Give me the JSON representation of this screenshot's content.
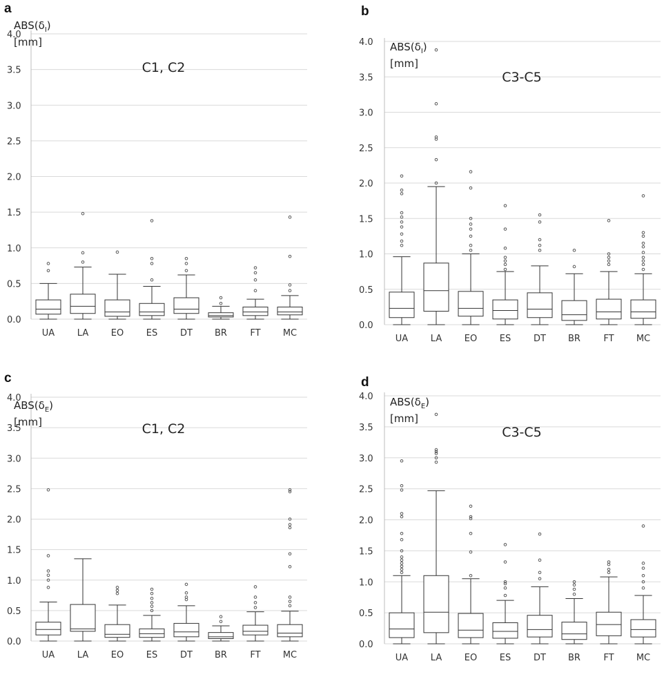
{
  "chart_data": [
    {
      "panel": "a",
      "type": "box",
      "title": "C1, C2",
      "ylabel": "ABS(δI)",
      "yunit": "[mm]",
      "ylim": [
        0,
        4.0
      ],
      "yticks": [
        "0.0",
        "0.5",
        "1.0",
        "1.5",
        "2.0",
        "2.5",
        "3.0",
        "3.5",
        "4.0"
      ],
      "grid": true,
      "categories": [
        "UA",
        "LA",
        "EO",
        "ES",
        "DT",
        "BR",
        "FT",
        "MC"
      ],
      "boxes": [
        {
          "min": 0,
          "q1": 0.07,
          "median": 0.14,
          "q3": 0.27,
          "max": 0.5,
          "outliers": [
            0.68,
            0.78
          ]
        },
        {
          "min": 0,
          "q1": 0.08,
          "median": 0.18,
          "q3": 0.35,
          "max": 0.73,
          "outliers": [
            0.8,
            0.93,
            1.48
          ]
        },
        {
          "min": 0,
          "q1": 0.04,
          "median": 0.1,
          "q3": 0.27,
          "max": 0.63,
          "outliers": [
            0.94
          ]
        },
        {
          "min": 0,
          "q1": 0.05,
          "median": 0.1,
          "q3": 0.22,
          "max": 0.46,
          "outliers": [
            0.55,
            0.78,
            0.85,
            1.38
          ]
        },
        {
          "min": 0,
          "q1": 0.08,
          "median": 0.14,
          "q3": 0.3,
          "max": 0.62,
          "outliers": [
            0.68,
            0.78,
            0.85
          ]
        },
        {
          "min": 0,
          "q1": 0.03,
          "median": 0.05,
          "q3": 0.09,
          "max": 0.18,
          "outliers": [
            0.22,
            0.3
          ]
        },
        {
          "min": 0,
          "q1": 0.05,
          "median": 0.1,
          "q3": 0.17,
          "max": 0.28,
          "outliers": [
            0.4,
            0.55,
            0.65,
            0.72
          ]
        },
        {
          "min": 0,
          "q1": 0.06,
          "median": 0.1,
          "q3": 0.17,
          "max": 0.33,
          "outliers": [
            0.4,
            0.48,
            0.88,
            1.43
          ]
        }
      ]
    },
    {
      "panel": "b",
      "type": "box",
      "title": "C3-C5",
      "ylabel": "ABS(δI)",
      "yunit": "[mm]",
      "ylim": [
        0,
        4.0
      ],
      "yticks": [
        "0.0",
        "0.5",
        "1.0",
        "1.5",
        "2.0",
        "2.5",
        "3.0",
        "3.5",
        "4.0"
      ],
      "grid": true,
      "categories": [
        "UA",
        "LA",
        "EO",
        "ES",
        "DT",
        "BR",
        "FT",
        "MC"
      ],
      "boxes": [
        {
          "min": 0,
          "q1": 0.1,
          "median": 0.23,
          "q3": 0.46,
          "max": 0.96,
          "outliers": [
            1.12,
            1.18,
            1.28,
            1.38,
            1.45,
            1.52,
            1.58,
            1.85,
            1.9,
            2.1
          ]
        },
        {
          "min": 0,
          "q1": 0.19,
          "median": 0.48,
          "q3": 0.87,
          "max": 1.95,
          "outliers": [
            2.0,
            2.33,
            2.62,
            2.65,
            3.12,
            3.88
          ]
        },
        {
          "min": 0,
          "q1": 0.12,
          "median": 0.23,
          "q3": 0.47,
          "max": 1.0,
          "outliers": [
            1.05,
            1.12,
            1.25,
            1.35,
            1.42,
            1.5,
            1.93,
            2.16
          ]
        },
        {
          "min": 0,
          "q1": 0.08,
          "median": 0.2,
          "q3": 0.35,
          "max": 0.75,
          "outliers": [
            0.78,
            0.85,
            0.9,
            0.95,
            1.08,
            1.35,
            1.68
          ]
        },
        {
          "min": 0,
          "q1": 0.1,
          "median": 0.22,
          "q3": 0.45,
          "max": 0.83,
          "outliers": [
            1.05,
            1.12,
            1.2,
            1.45,
            1.55
          ]
        },
        {
          "min": 0,
          "q1": 0.06,
          "median": 0.14,
          "q3": 0.34,
          "max": 0.72,
          "outliers": [
            0.82,
            1.05
          ]
        },
        {
          "min": 0,
          "q1": 0.08,
          "median": 0.18,
          "q3": 0.36,
          "max": 0.75,
          "outliers": [
            0.85,
            0.9,
            0.95,
            1.0,
            1.47
          ]
        },
        {
          "min": 0,
          "q1": 0.09,
          "median": 0.18,
          "q3": 0.35,
          "max": 0.72,
          "outliers": [
            0.78,
            0.85,
            0.9,
            0.95,
            1.02,
            1.1,
            1.15,
            1.25,
            1.3,
            1.82
          ]
        }
      ]
    },
    {
      "panel": "c",
      "type": "box",
      "title": "C1, C2",
      "ylabel": "ABS(δE)",
      "yunit": "[mm]",
      "ylim": [
        0,
        4.0
      ],
      "yticks": [
        "0.0",
        "0.5",
        "1.0",
        "1.5",
        "2.0",
        "2.5",
        "3.0",
        "3.5",
        "4.0"
      ],
      "grid": true,
      "categories": [
        "UA",
        "LA",
        "EO",
        "ES",
        "DT",
        "BR",
        "FT",
        "MC"
      ],
      "boxes": [
        {
          "min": 0,
          "q1": 0.1,
          "median": 0.19,
          "q3": 0.31,
          "max": 0.64,
          "outliers": [
            0.88,
            1.0,
            1.08,
            1.15,
            1.4,
            2.48
          ]
        },
        {
          "min": 0,
          "q1": 0.16,
          "median": 0.2,
          "q3": 0.6,
          "max": 1.35,
          "outliers": []
        },
        {
          "min": 0,
          "q1": 0.06,
          "median": 0.11,
          "q3": 0.27,
          "max": 0.59,
          "outliers": [
            0.78,
            0.83,
            0.88
          ]
        },
        {
          "min": 0,
          "q1": 0.06,
          "median": 0.12,
          "q3": 0.2,
          "max": 0.42,
          "outliers": [
            0.5,
            0.57,
            0.63,
            0.7,
            0.78,
            0.85
          ]
        },
        {
          "min": 0,
          "q1": 0.07,
          "median": 0.15,
          "q3": 0.29,
          "max": 0.58,
          "outliers": [
            0.68,
            0.72,
            0.79,
            0.93
          ]
        },
        {
          "min": 0,
          "q1": 0.04,
          "median": 0.07,
          "q3": 0.14,
          "max": 0.25,
          "outliers": [
            0.32,
            0.4
          ]
        },
        {
          "min": 0,
          "q1": 0.1,
          "median": 0.16,
          "q3": 0.26,
          "max": 0.48,
          "outliers": [
            0.55,
            0.63,
            0.72,
            0.89
          ]
        },
        {
          "min": 0,
          "q1": 0.07,
          "median": 0.13,
          "q3": 0.27,
          "max": 0.49,
          "outliers": [
            0.58,
            0.65,
            0.72,
            1.22,
            1.43,
            1.86,
            1.91,
            2.0,
            2.45,
            2.48
          ]
        }
      ]
    },
    {
      "panel": "d",
      "type": "box",
      "title": "C3-C5",
      "ylabel": "ABS(δE)",
      "yunit": "[mm]",
      "ylim": [
        0,
        4.0
      ],
      "yticks": [
        "0.0",
        "0.5",
        "1.0",
        "1.5",
        "2.0",
        "2.5",
        "3.0",
        "3.5",
        "4.0"
      ],
      "grid": true,
      "categories": [
        "UA",
        "LA",
        "EO",
        "ES",
        "DT",
        "BR",
        "FT",
        "MC"
      ],
      "boxes": [
        {
          "min": 0,
          "q1": 0.1,
          "median": 0.24,
          "q3": 0.5,
          "max": 1.1,
          "outliers": [
            1.15,
            1.2,
            1.25,
            1.3,
            1.35,
            1.4,
            1.5,
            1.68,
            1.78,
            2.05,
            2.1,
            2.48,
            2.55,
            2.95
          ]
        },
        {
          "min": 0,
          "q1": 0.18,
          "median": 0.51,
          "q3": 1.1,
          "max": 2.47,
          "outliers": [
            2.93,
            3.0,
            3.07,
            3.1,
            3.13,
            3.7
          ]
        },
        {
          "min": 0,
          "q1": 0.1,
          "median": 0.22,
          "q3": 0.49,
          "max": 1.05,
          "outliers": [
            1.1,
            1.48,
            1.78,
            2.02,
            2.05,
            2.22
          ]
        },
        {
          "min": 0,
          "q1": 0.09,
          "median": 0.2,
          "q3": 0.34,
          "max": 0.7,
          "outliers": [
            0.78,
            0.9,
            0.97,
            1.0,
            1.32,
            1.6
          ]
        },
        {
          "min": 0,
          "q1": 0.11,
          "median": 0.23,
          "q3": 0.46,
          "max": 0.92,
          "outliers": [
            1.05,
            1.15,
            1.35,
            1.77
          ]
        },
        {
          "min": 0,
          "q1": 0.07,
          "median": 0.16,
          "q3": 0.35,
          "max": 0.73,
          "outliers": [
            0.8,
            0.88,
            0.95,
            1.0
          ]
        },
        {
          "min": 0,
          "q1": 0.13,
          "median": 0.31,
          "q3": 0.51,
          "max": 1.08,
          "outliers": [
            1.15,
            1.2,
            1.28,
            1.32
          ]
        },
        {
          "min": 0,
          "q1": 0.11,
          "median": 0.23,
          "q3": 0.39,
          "max": 0.78,
          "outliers": [
            0.9,
            1.0,
            1.1,
            1.22,
            1.3,
            1.9
          ]
        }
      ]
    }
  ]
}
